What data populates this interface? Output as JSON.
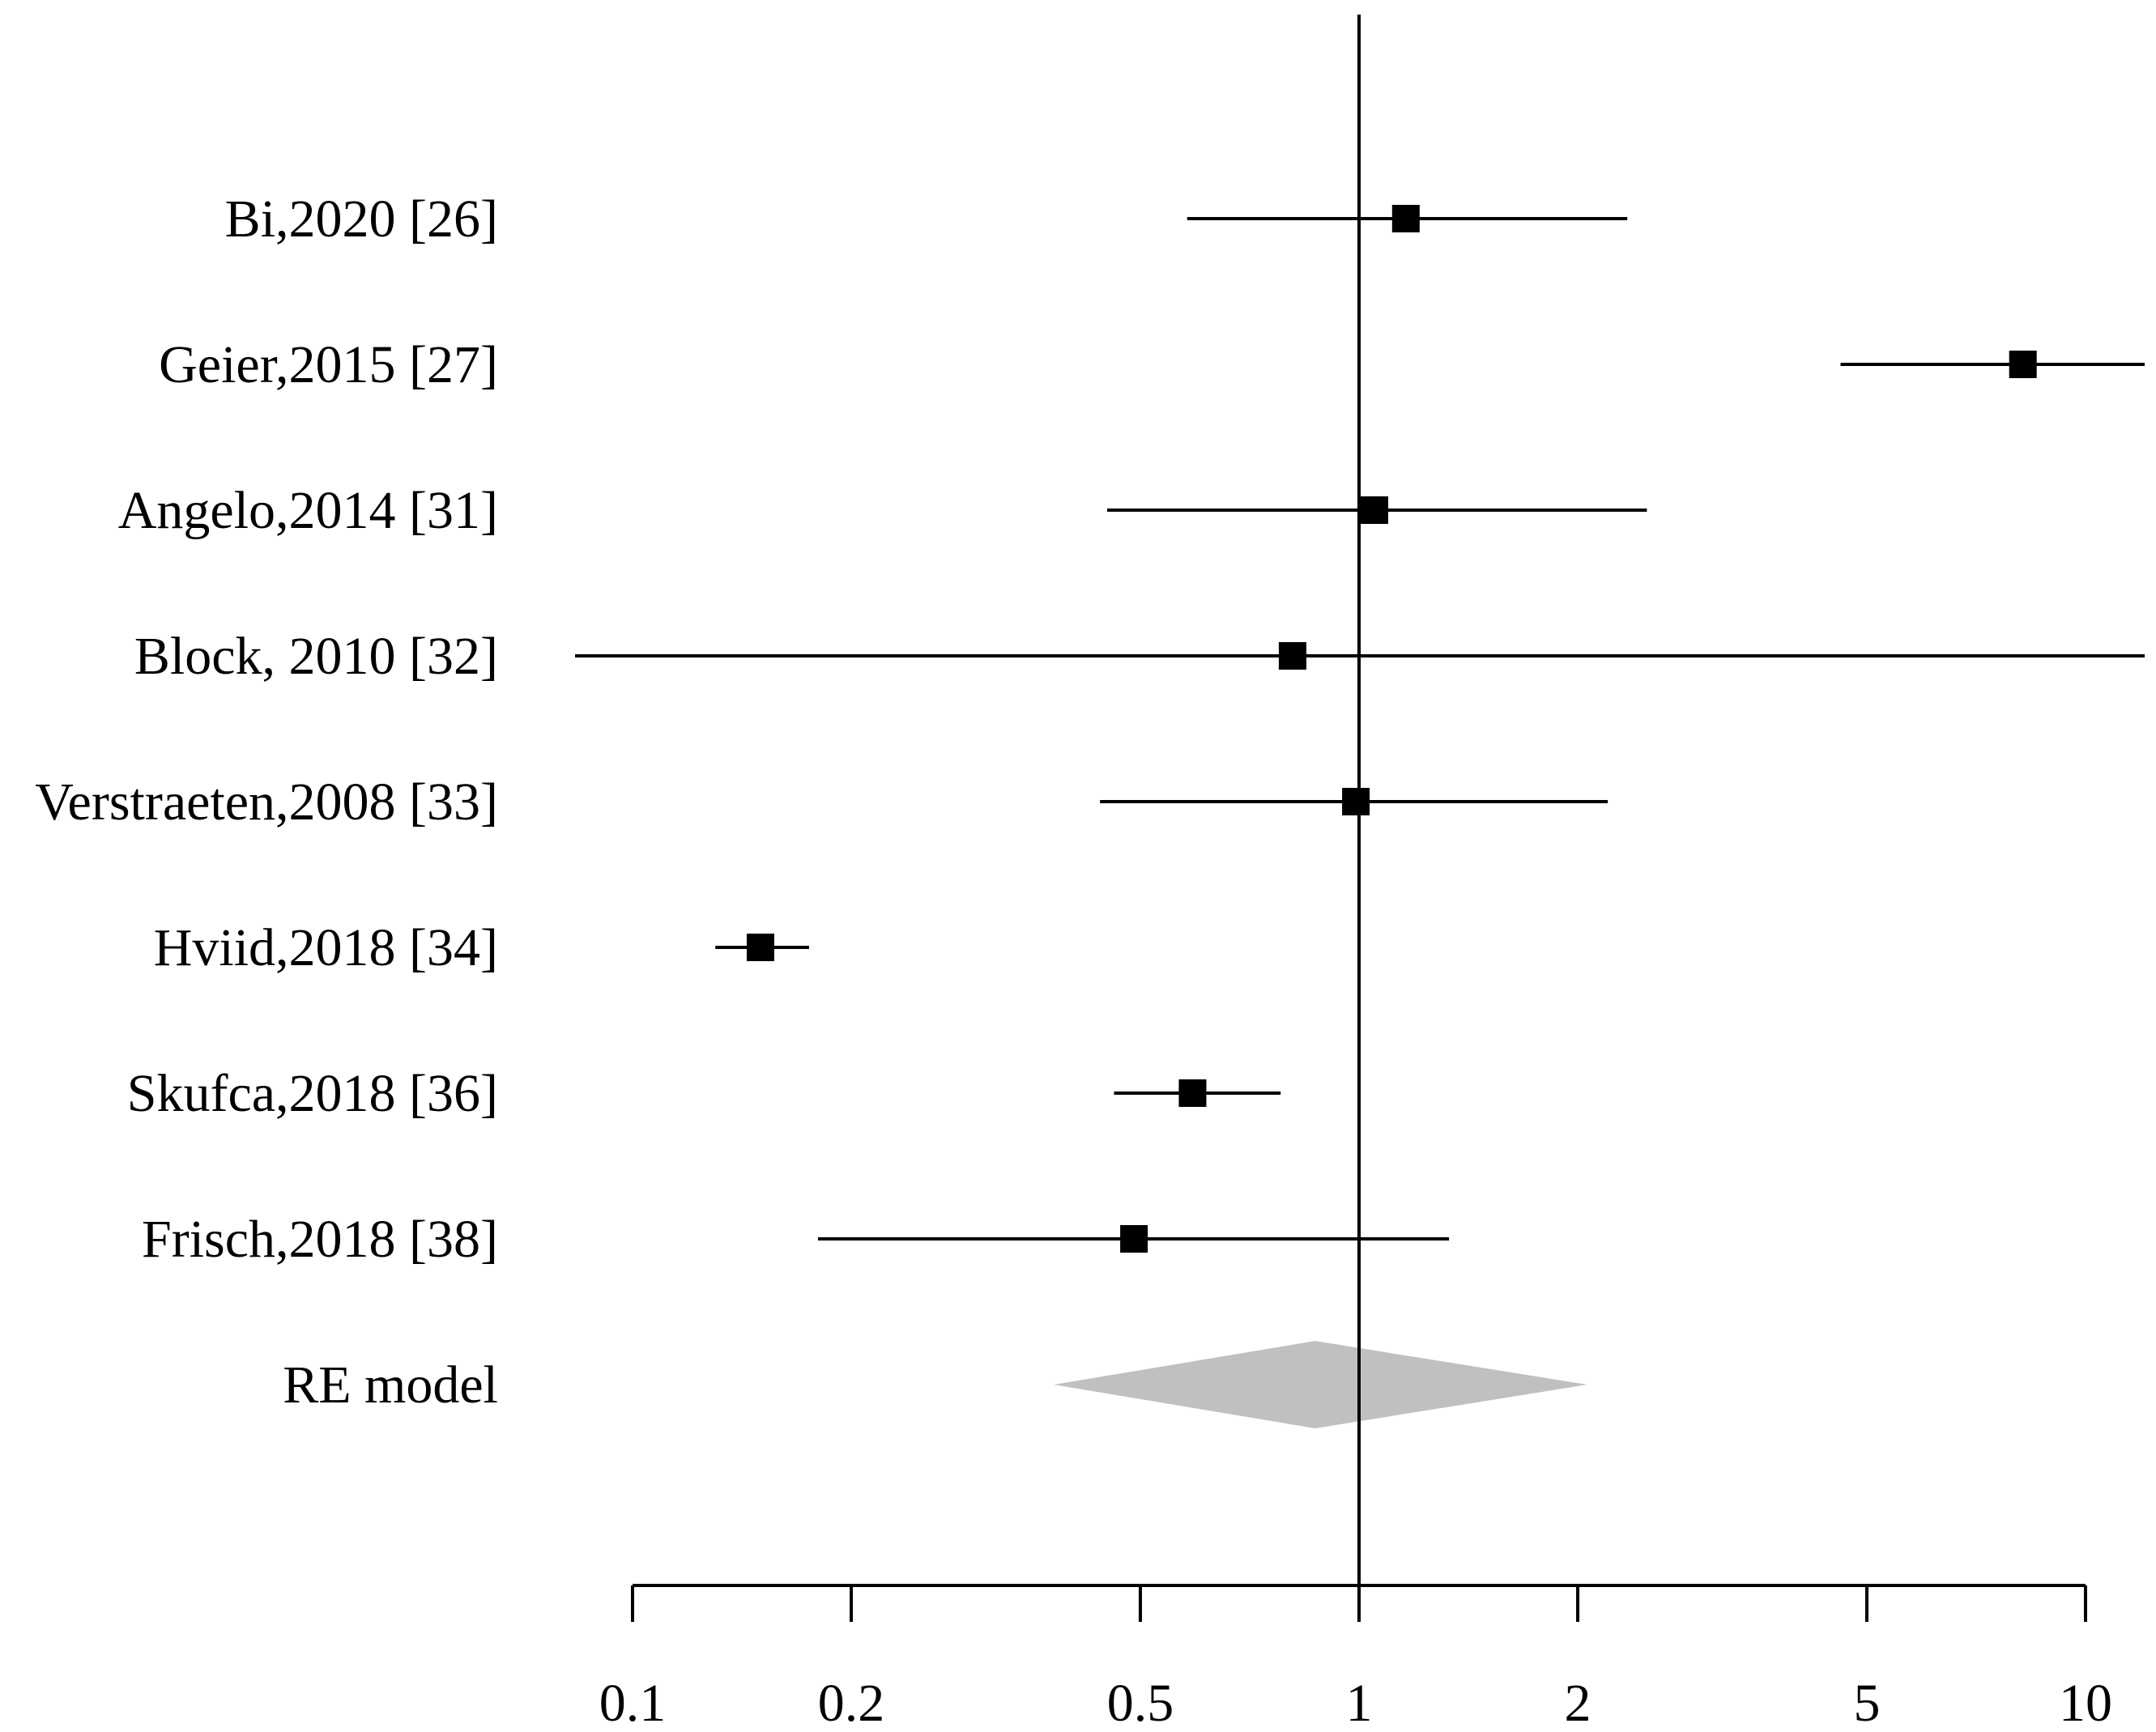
{
  "chart_data": {
    "type": "forest",
    "title": "",
    "xlabel": "",
    "ylabel": "",
    "x_scale": "log",
    "xlim": [
      0.1,
      10
    ],
    "reference_line": 1,
    "ticks": [
      {
        "value": 0.1,
        "label": "0.1"
      },
      {
        "value": 0.2,
        "label": "0.2"
      },
      {
        "value": 0.5,
        "label": "0.5"
      },
      {
        "value": 1,
        "label": "1"
      },
      {
        "value": 2,
        "label": "2"
      },
      {
        "value": 5,
        "label": "5"
      },
      {
        "value": 10,
        "label": "10"
      }
    ],
    "studies": [
      {
        "label": "Bi,2020 [26]",
        "estimate": 1.16,
        "ci_low": 0.58,
        "ci_high": 2.34
      },
      {
        "label": "Geier,2015 [27]",
        "estimate": 8.2,
        "ci_low": 4.6,
        "ci_high": 12.0,
        "ci_high_truncated": true
      },
      {
        "label": "Angelo,2014 [31]",
        "estimate": 1.05,
        "ci_low": 0.45,
        "ci_high": 2.49
      },
      {
        "label": "Block, 2010 [32]",
        "estimate": 0.81,
        "ci_low": 0.083,
        "ci_high": 12.0,
        "ci_low_truncated": true,
        "ci_high_truncated": true
      },
      {
        "label": "Verstraeten,2008 [33]",
        "estimate": 0.99,
        "ci_low": 0.44,
        "ci_high": 2.2
      },
      {
        "label": "Hviid,2018 [34]",
        "estimate": 0.15,
        "ci_low": 0.13,
        "ci_high": 0.175
      },
      {
        "label": "Skufca,2018 [36]",
        "estimate": 0.59,
        "ci_low": 0.46,
        "ci_high": 0.78
      },
      {
        "label": "Frisch,2018 [38]",
        "estimate": 0.49,
        "ci_low": 0.18,
        "ci_high": 1.33
      }
    ],
    "summary": {
      "label": "RE model",
      "estimate": 0.87,
      "ci_low": 0.38,
      "ci_high": 2.06,
      "color": "#c0c0c0"
    }
  }
}
